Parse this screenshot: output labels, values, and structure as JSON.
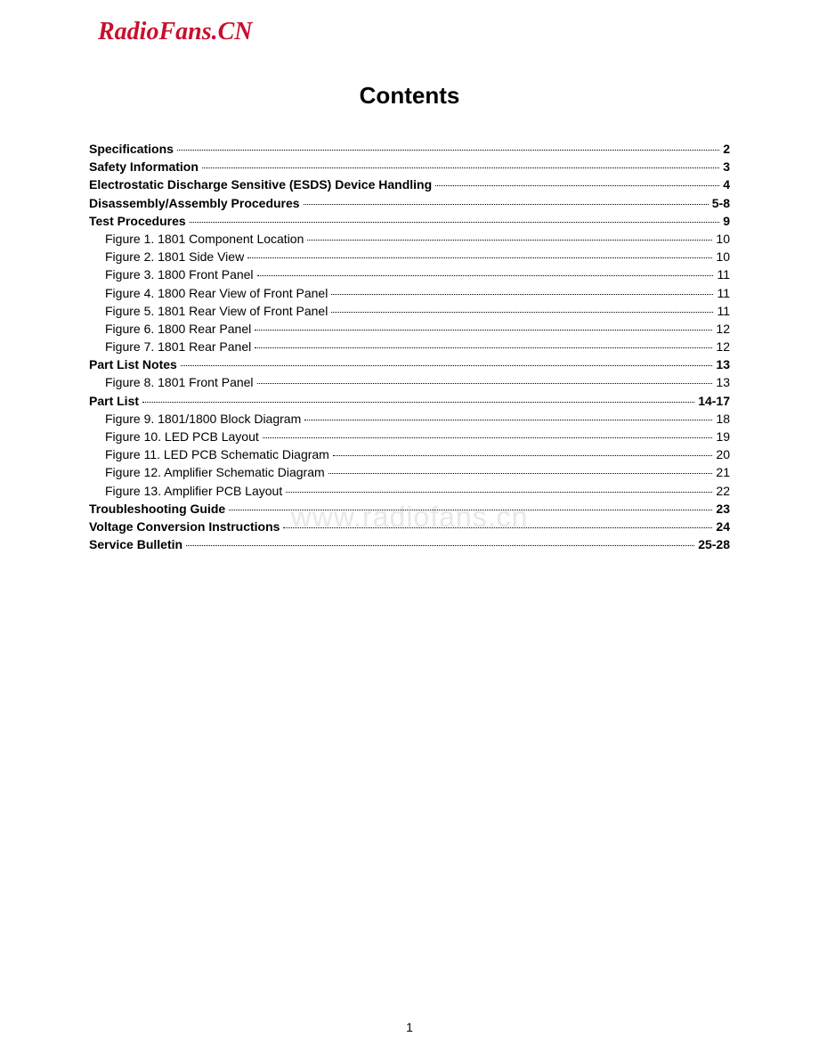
{
  "header": {
    "logo": "RadioFans.CN"
  },
  "title": "Contents",
  "watermark": "www.radiofans.cn",
  "page_number": "1",
  "toc": {
    "entries": [
      {
        "label": "Specifications",
        "page": "2",
        "bold": true,
        "indent": false
      },
      {
        "label": "Safety Information",
        "page": "3",
        "bold": true,
        "indent": false
      },
      {
        "label": "Electrostatic Discharge Sensitive (ESDS) Device Handling",
        "page": "4",
        "bold": true,
        "indent": false
      },
      {
        "label": "Disassembly/Assembly Procedures",
        "page": "5-8",
        "bold": true,
        "indent": false
      },
      {
        "label": "Test Procedures",
        "page": "9",
        "bold": true,
        "indent": false
      },
      {
        "label": "Figure 1. 1801 Component Location",
        "page": "10",
        "bold": false,
        "indent": true
      },
      {
        "label": "Figure 2. 1801 Side View",
        "page": "10",
        "bold": false,
        "indent": true
      },
      {
        "label": "Figure 3. 1800 Front Panel",
        "page": "11",
        "bold": false,
        "indent": true
      },
      {
        "label": "Figure 4. 1800 Rear View of Front Panel",
        "page": "11",
        "bold": false,
        "indent": true
      },
      {
        "label": "Figure 5. 1801 Rear View of Front Panel",
        "page": "11",
        "bold": false,
        "indent": true
      },
      {
        "label": "Figure 6. 1800 Rear Panel",
        "page": "12",
        "bold": false,
        "indent": true
      },
      {
        "label": "Figure 7. 1801 Rear Panel",
        "page": "12",
        "bold": false,
        "indent": true
      },
      {
        "label": "Part List Notes",
        "page": "13",
        "bold": true,
        "indent": false
      },
      {
        "label": "Figure 8. 1801 Front Panel",
        "page": "13",
        "bold": false,
        "indent": true
      },
      {
        "label": "Part List",
        "page": "14-17",
        "bold": true,
        "indent": false
      },
      {
        "label": "Figure 9. 1801/1800 Block Diagram",
        "page": "18",
        "bold": false,
        "indent": true
      },
      {
        "label": "Figure 10. LED PCB Layout",
        "page": "19",
        "bold": false,
        "indent": true
      },
      {
        "label": "Figure 11. LED PCB Schematic Diagram",
        "page": "20",
        "bold": false,
        "indent": true
      },
      {
        "label": "Figure 12. Amplifier Schematic Diagram",
        "page": "21",
        "bold": false,
        "indent": true
      },
      {
        "label": "Figure 13. Amplifier PCB Layout",
        "page": "22",
        "bold": false,
        "indent": true
      },
      {
        "label": "Troubleshooting Guide",
        "page": "23",
        "bold": true,
        "indent": false
      },
      {
        "label": "Voltage Conversion Instructions",
        "page": "24",
        "bold": true,
        "indent": false
      },
      {
        "label": "Service Bulletin",
        "page": "25-28",
        "bold": true,
        "indent": false
      }
    ]
  }
}
